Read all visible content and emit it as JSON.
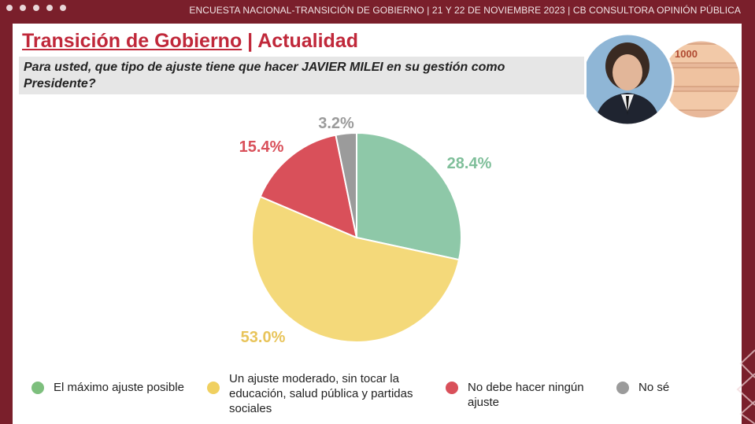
{
  "header": {
    "text": "ENCUESTA NACIONAL-TRANSICIÓN DE GOBIERNO  | 21 Y 22 DE NOVIEMBRE 2023 | CB CONSULTORA OPINIÓN PÚBLICA"
  },
  "title": {
    "main": "Transición de Gobierno",
    "separator": " | ",
    "sub": "Actualidad"
  },
  "question": "Para usted, que tipo de ajuste tiene que hacer JAVIER MILEI en su gestión como Presidente?",
  "colors": {
    "accent": "#c0283a",
    "frame": "#7a1f2b",
    "green": "#8ec8a8",
    "yellow": "#f4d97a",
    "red": "#d9505a",
    "gray": "#9b9b9b"
  },
  "chart_data": {
    "type": "pie",
    "slices": [
      {
        "label": "El máximo ajuste posible",
        "value": 28.4,
        "display": "28.4%",
        "color": "#8ec8a8",
        "label_color": "#7fbf9a"
      },
      {
        "label": "Un ajuste moderado, sin tocar la educación, salud pública y partidas sociales",
        "value": 53.0,
        "display": "53.0%",
        "color": "#f4d97a",
        "label_color": "#e8c45a"
      },
      {
        "label": "No debe hacer ningún ajuste",
        "value": 15.4,
        "display": "15.4%",
        "color": "#d9505a",
        "label_color": "#d9505a"
      },
      {
        "label": "No sé",
        "value": 3.2,
        "display": "3.2%",
        "color": "#9b9b9b",
        "label_color": "#9b9b9b"
      }
    ],
    "legend_position": "bottom"
  },
  "legend": [
    {
      "lines": [
        "El máximo ajuste posible"
      ],
      "color": "#7dbf7d"
    },
    {
      "lines": [
        "Un ajuste moderado, sin tocar la",
        "educación, salud pública y partidas",
        "sociales"
      ],
      "color": "#f0d060"
    },
    {
      "lines": [
        "No debe hacer ningún",
        "ajuste"
      ],
      "color": "#d9505a"
    },
    {
      "lines": [
        "No sé"
      ],
      "color": "#9b9b9b"
    }
  ],
  "photo_banknote": "1000"
}
